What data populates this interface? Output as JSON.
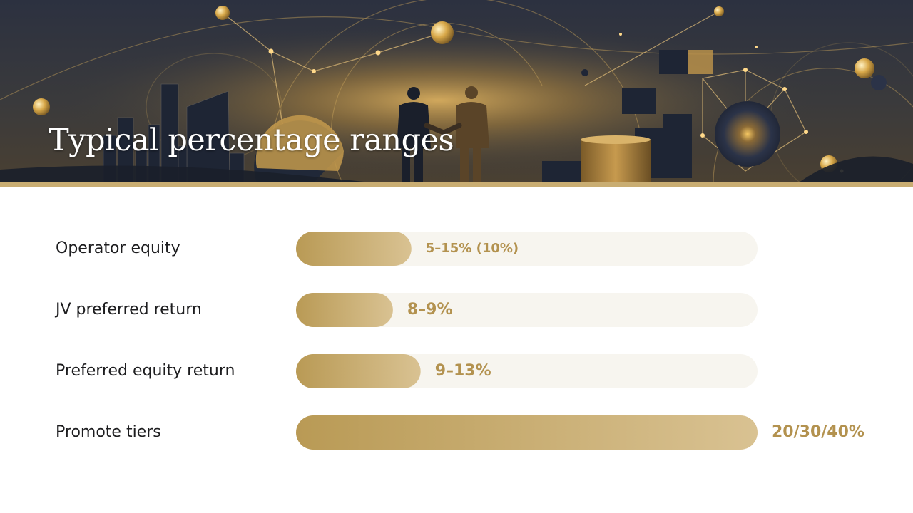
{
  "title": "Typical percentage ranges",
  "colors": {
    "bar_start": "#b99a55",
    "bar_end": "#d9c292",
    "track": "#f7f5ef",
    "value_text": "#b3924f",
    "label_text": "#1d1d1f",
    "rule": "#c9ad72"
  },
  "chart_data": {
    "type": "bar",
    "orientation": "horizontal",
    "title": "Typical percentage ranges",
    "categories": [
      "Operator equity",
      "JV preferred return",
      "Preferred equity return",
      "Promote tiers"
    ],
    "values": [
      25,
      21,
      27,
      100
    ],
    "value_labels": [
      "5–15% (10%)",
      "8–9%",
      "9–13%",
      "20/30/40%"
    ],
    "xlim": [
      0,
      100
    ],
    "grid": false,
    "legend": "none"
  }
}
